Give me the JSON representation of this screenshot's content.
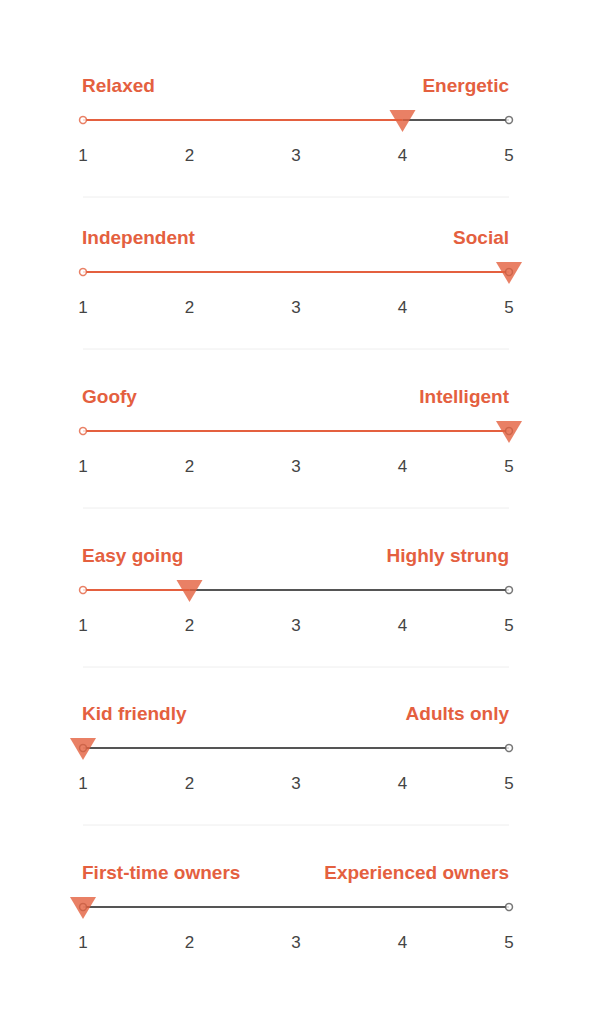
{
  "chart_data": [
    {
      "type": "slider",
      "left_label": "Relaxed",
      "right_label": "Energetic",
      "value": 4,
      "xlim": [
        1,
        5
      ],
      "xticks": [
        1,
        2,
        3,
        4,
        5
      ],
      "color": "#e4603f",
      "marker": "triangle"
    },
    {
      "type": "slider",
      "left_label": "Independent",
      "right_label": "Social",
      "value": 5,
      "xlim": [
        1,
        5
      ],
      "xticks": [
        1,
        2,
        3,
        4,
        5
      ],
      "color": "#e4603f",
      "marker": "triangle"
    },
    {
      "type": "slider",
      "left_label": "Goofy",
      "right_label": "Intelligent",
      "value": 5,
      "xlim": [
        1,
        5
      ],
      "xticks": [
        1,
        2,
        3,
        4,
        5
      ],
      "color": "#e4603f",
      "marker": "triangle"
    },
    {
      "type": "slider",
      "left_label": "Easy going",
      "right_label": "Highly strung",
      "value": 2,
      "xlim": [
        1,
        5
      ],
      "xticks": [
        1,
        2,
        3,
        4,
        5
      ],
      "color": "#e4603f",
      "marker": "triangle"
    },
    {
      "type": "slider",
      "left_label": "Kid friendly",
      "right_label": "Adults only",
      "value": 1,
      "xlim": [
        1,
        5
      ],
      "xticks": [
        1,
        2,
        3,
        4,
        5
      ],
      "color": "#e4603f",
      "marker": "triangle"
    },
    {
      "type": "slider",
      "left_label": "First-time owners",
      "right_label": "Experienced owners",
      "value": 1,
      "xlim": [
        1,
        5
      ],
      "xticks": [
        1,
        2,
        3,
        4,
        5
      ],
      "color": "#e4603f",
      "marker": "triangle"
    }
  ]
}
